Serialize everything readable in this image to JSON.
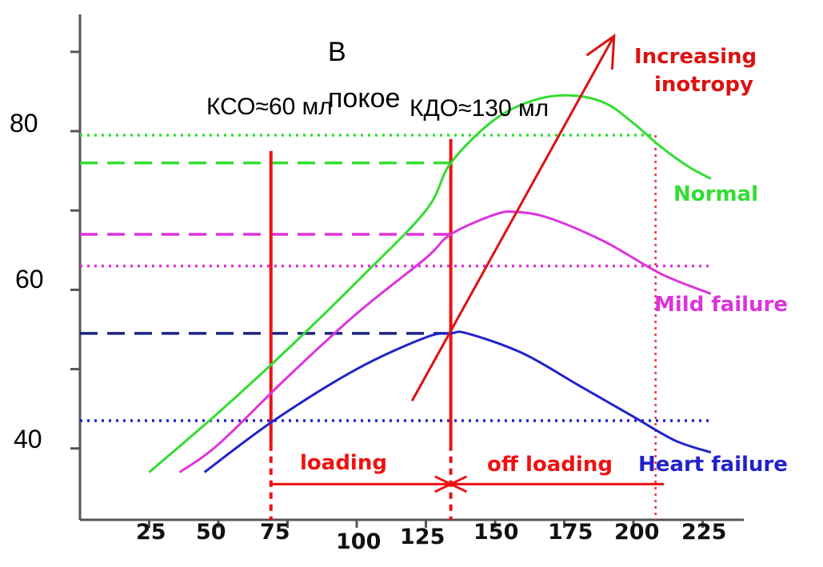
{
  "chart_data": {
    "type": "line",
    "xlim": [
      0,
      237
    ],
    "ylim": [
      31,
      92
    ],
    "x_ticks": [
      "25",
      "50",
      "75",
      "100",
      "125",
      "150",
      "175",
      "200",
      "225"
    ],
    "y_tick_labels": [
      "80",
      "60",
      "40"
    ],
    "series": [
      {
        "name": "Normal",
        "color": "#33dd33",
        "x": [
          25,
          50,
          75,
          100,
          125,
          134,
          150,
          165,
          178,
          190,
          200,
          210,
          220,
          228
        ],
        "y": [
          37,
          44.5,
          52.5,
          61,
          70,
          76,
          81.5,
          84,
          84.5,
          83.5,
          81,
          78,
          75.5,
          74
        ]
      },
      {
        "name": "Mild failure",
        "color": "#dd33dd",
        "x": [
          36,
          50,
          75,
          100,
          125,
          134,
          150,
          158,
          170,
          190,
          210,
          228
        ],
        "y": [
          37,
          40.5,
          49,
          57,
          64,
          67,
          69.5,
          69.8,
          69,
          66,
          62,
          59.5
        ]
      },
      {
        "name": "Heart failure",
        "color": "#2222cc",
        "x": [
          45,
          70,
          100,
          125,
          134,
          140,
          160,
          180,
          200,
          215,
          228
        ],
        "y": [
          37,
          43.5,
          50,
          54,
          54.5,
          54.5,
          52,
          48,
          44,
          41,
          39.5
        ]
      }
    ],
    "hlines": [
      {
        "y": 79.5,
        "color": "#33dd33",
        "style": "dotted",
        "x1": 0,
        "x2": 208
      },
      {
        "y": 76.0,
        "color": "#33dd33",
        "style": "dashed",
        "x1": 0,
        "x2": 134
      },
      {
        "y": 67.0,
        "color": "#dd33dd",
        "style": "dashed",
        "x1": 0,
        "x2": 134
      },
      {
        "y": 63.0,
        "color": "#dd33dd",
        "style": "dotted",
        "x1": 0,
        "x2": 228
      },
      {
        "y": 54.5,
        "color": "#1a237e",
        "style": "dashed",
        "x1": 0,
        "x2": 134
      },
      {
        "y": 43.5,
        "color": "#2222cc",
        "style": "dotted",
        "x1": 0,
        "x2": 228
      }
    ],
    "vlines": [
      {
        "x": 69,
        "y_top": 77.5,
        "y_solid_bottom": 40.5,
        "color": "#ee1111"
      },
      {
        "x": 134,
        "y_top": 79,
        "y_solid_bottom": 40.5,
        "color": "#ee1111"
      }
    ],
    "vline_dotted": {
      "x": 208,
      "y_top": 79.5,
      "color": "#ee3333"
    },
    "inotropy_arrow": {
      "from": [
        120,
        46
      ],
      "to": [
        193,
        92
      ],
      "color": "#dd1111"
    },
    "loading_arrow": {
      "from": [
        69,
        35.5
      ],
      "to": [
        134,
        35.5
      ],
      "color": "#ee1111"
    },
    "offloading_arrow": {
      "from": [
        211,
        35.5
      ],
      "to": [
        134,
        35.5
      ],
      "color": "#ee1111"
    },
    "labels": {
      "normal": "Normal",
      "mild_failure": "Mild failure",
      "heart_failure": "Heart failure",
      "increasing_line1": "Increasing",
      "increasing_line2": "inotropy",
      "loading": "loading",
      "off_loading": "off loading"
    },
    "annotations": {
      "v_line1": "В",
      "v_line2": "покое",
      "kso": "КСО≈60 мл",
      "kdo": "КДО≈130 мл"
    },
    "grid": false
  }
}
